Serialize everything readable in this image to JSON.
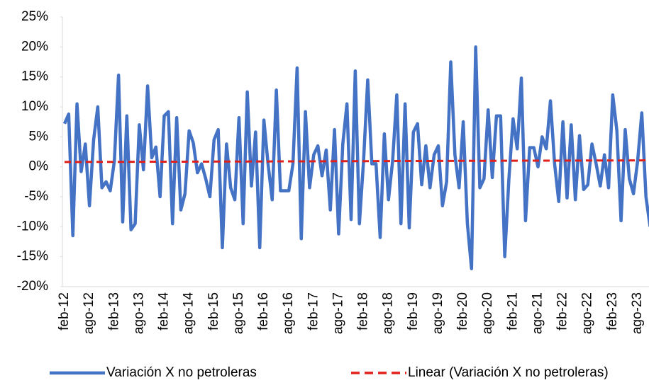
{
  "chart_data": {
    "type": "line",
    "categories": [
      "feb-12",
      null,
      null,
      null,
      null,
      null,
      "ago-12",
      null,
      null,
      null,
      null,
      null,
      "feb-13",
      null,
      null,
      null,
      null,
      null,
      "ago-13",
      null,
      null,
      null,
      null,
      null,
      "feb-14",
      null,
      null,
      null,
      null,
      null,
      "ago-14",
      null,
      null,
      null,
      null,
      null,
      "feb-15",
      null,
      null,
      null,
      null,
      null,
      "ago-15",
      null,
      null,
      null,
      null,
      null,
      "feb-16",
      null,
      null,
      null,
      null,
      null,
      "ago-16",
      null,
      null,
      null,
      null,
      null,
      "feb-17",
      null,
      null,
      null,
      null,
      null,
      "ago-17",
      null,
      null,
      null,
      null,
      null,
      "feb-18",
      null,
      null,
      null,
      null,
      null,
      "ago-18",
      null,
      null,
      null,
      null,
      null,
      "feb-19",
      null,
      null,
      null,
      null,
      null,
      "ago-19",
      null,
      null,
      null,
      null,
      null,
      "feb-20",
      null,
      null,
      null,
      null,
      null,
      "ago-20",
      null,
      null,
      null,
      null,
      null,
      "feb-21",
      null,
      null,
      null,
      null,
      null,
      "ago-21",
      null,
      null,
      null,
      null,
      null,
      "feb-22",
      null,
      null,
      null,
      null,
      null,
      "ago-22",
      null,
      null,
      null,
      null,
      null,
      "feb-23",
      null,
      null,
      null,
      null,
      null,
      "ago-23",
      null,
      null,
      null
    ],
    "series": [
      {
        "name": "Variación X no petroleras",
        "color": "#4472c4",
        "dashed": false,
        "values": [
          7.2,
          8.8,
          -11.5,
          10.5,
          -0.8,
          3.8,
          -6.5,
          4.5,
          10.0,
          -3.5,
          -2.5,
          -4.0,
          1.0,
          15.3,
          -9.2,
          8.5,
          -10.5,
          -9.5,
          7.0,
          -0.5,
          13.5,
          1.5,
          3.3,
          -5.0,
          8.5,
          9.2,
          -9.5,
          8.2,
          -7.2,
          -4.5,
          6.0,
          4.0,
          -1.0,
          0.5,
          -2.0,
          -5.0,
          4.5,
          6.2,
          -13.5,
          3.8,
          -3.5,
          -5.5,
          8.2,
          -9.5,
          12.5,
          -3.2,
          5.8,
          -13.5,
          7.8,
          0.5,
          -5.5,
          12.8,
          -4.0,
          -4.0,
          -4.0,
          0.5,
          16.5,
          -12.0,
          9.2,
          -3.5,
          2.0,
          3.5,
          -1.5,
          2.8,
          -7.2,
          6.2,
          -11.2,
          3.8,
          10.5,
          -8.8,
          16.0,
          -9.5,
          1.0,
          14.5,
          0.5,
          0.5,
          -11.8,
          5.5,
          -5.5,
          1.0,
          12.0,
          -9.5,
          10.5,
          -10.2,
          5.8,
          7.2,
          -3.0,
          3.5,
          -3.5,
          2.0,
          3.5,
          -6.5,
          -2.5,
          17.5,
          2.0,
          -3.5,
          7.5,
          -9.5,
          -17.0,
          20.0,
          -3.5,
          -2.0,
          9.5,
          -1.8,
          8.5,
          8.5,
          -15.0,
          -2.0,
          8.0,
          3.0,
          14.8,
          -9.0,
          3.2,
          3.2,
          0.0,
          5.0,
          3.0,
          11.0,
          0.5,
          -5.8,
          7.5,
          -5.2,
          7.0,
          -5.5,
          5.2,
          -3.8,
          -3.0,
          3.8,
          0.5,
          -3.2,
          2.0,
          -3.5,
          12.0,
          6.0,
          -9.0,
          6.2,
          -2.0,
          -4.5,
          1.0,
          9.0,
          -5.0,
          -10.0
        ]
      },
      {
        "name": "Linear (Variación X no petroleras)",
        "color": "#e0211b",
        "dashed": true,
        "values": [
          0.8,
          0.8,
          0.8,
          0.8,
          0.8,
          0.81,
          0.81,
          0.81,
          0.81,
          0.81,
          0.82,
          0.82,
          0.82,
          0.82,
          0.82,
          0.83,
          0.83,
          0.83,
          0.83,
          0.83,
          0.84,
          0.84,
          0.84,
          0.84,
          0.84,
          0.85,
          0.85,
          0.85,
          0.85,
          0.85,
          0.86,
          0.86,
          0.86,
          0.86,
          0.86,
          0.87,
          0.87,
          0.87,
          0.87,
          0.87,
          0.88,
          0.88,
          0.88,
          0.88,
          0.88,
          0.89,
          0.89,
          0.89,
          0.89,
          0.89,
          0.9,
          0.9,
          0.9,
          0.9,
          0.9,
          0.91,
          0.91,
          0.91,
          0.91,
          0.91,
          0.92,
          0.92,
          0.92,
          0.92,
          0.92,
          0.93,
          0.93,
          0.93,
          0.93,
          0.93,
          0.94,
          0.94,
          0.94,
          0.94,
          0.94,
          0.95,
          0.95,
          0.95,
          0.95,
          0.95,
          0.96,
          0.96,
          0.96,
          0.96,
          0.96,
          0.97,
          0.97,
          0.97,
          0.97,
          0.97,
          0.98,
          0.98,
          0.98,
          0.98,
          0.98,
          0.99,
          0.99,
          0.99,
          0.99,
          0.99,
          1.0,
          1.0,
          1.0,
          1.0,
          1.0,
          1.01,
          1.01,
          1.01,
          1.01,
          1.01,
          1.02,
          1.02,
          1.02,
          1.02,
          1.02,
          1.03,
          1.03,
          1.03,
          1.03,
          1.03,
          1.04,
          1.04,
          1.04,
          1.04,
          1.04,
          1.05,
          1.05,
          1.05,
          1.05,
          1.05,
          1.06,
          1.06,
          1.06,
          1.06,
          1.06,
          1.07,
          1.07,
          1.07,
          1.07,
          1.07,
          1.08,
          1.08
        ]
      }
    ],
    "ylim": [
      -20,
      25
    ],
    "yticks": [
      {
        "value": -20,
        "label": "-20%"
      },
      {
        "value": -15,
        "label": "-15%"
      },
      {
        "value": -10,
        "label": "-10%"
      },
      {
        "value": -5,
        "label": "-5%"
      },
      {
        "value": 0,
        "label": "0%"
      },
      {
        "value": 5,
        "label": "5%"
      },
      {
        "value": 10,
        "label": "10%"
      },
      {
        "value": 15,
        "label": "15%"
      },
      {
        "value": 20,
        "label": "20%"
      },
      {
        "value": 25,
        "label": "25%"
      }
    ],
    "legend": "bottom"
  }
}
